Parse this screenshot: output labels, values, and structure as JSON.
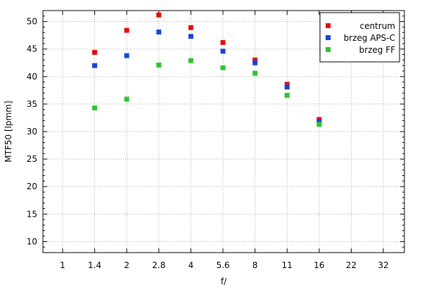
{
  "chart_data": {
    "type": "scatter",
    "title": "",
    "xlabel": "f/",
    "ylabel": "MTF50 [lpmm]",
    "x_ticks": [
      "1",
      "1.4",
      "2",
      "2.8",
      "4",
      "5.6",
      "8",
      "11",
      "16",
      "22",
      "32"
    ],
    "ylim": [
      8,
      52
    ],
    "y_ticks": [
      10,
      15,
      20,
      25,
      30,
      35,
      40,
      45,
      50
    ],
    "grid": true,
    "legend_position": "top-right",
    "series": [
      {
        "name": "centrum",
        "color": "#e01010",
        "points": [
          {
            "x": "1.4",
            "y": 44.4
          },
          {
            "x": "2",
            "y": 48.4
          },
          {
            "x": "2.8",
            "y": 51.2
          },
          {
            "x": "4",
            "y": 48.9
          },
          {
            "x": "5.6",
            "y": 46.2
          },
          {
            "x": "8",
            "y": 43.0
          },
          {
            "x": "11",
            "y": 38.6
          },
          {
            "x": "16",
            "y": 32.2
          }
        ]
      },
      {
        "name": "brzeg APS-C",
        "color": "#1a44d8",
        "points": [
          {
            "x": "1.4",
            "y": 42.0
          },
          {
            "x": "2",
            "y": 43.8
          },
          {
            "x": "2.8",
            "y": 48.1
          },
          {
            "x": "4",
            "y": 47.3
          },
          {
            "x": "5.6",
            "y": 44.6
          },
          {
            "x": "8",
            "y": 42.5
          },
          {
            "x": "11",
            "y": 38.1
          },
          {
            "x": "16",
            "y": 31.8
          }
        ]
      },
      {
        "name": "brzeg FF",
        "color": "#2ec42e",
        "points": [
          {
            "x": "1.4",
            "y": 34.3
          },
          {
            "x": "2",
            "y": 35.9
          },
          {
            "x": "2.8",
            "y": 42.1
          },
          {
            "x": "4",
            "y": 42.9
          },
          {
            "x": "5.6",
            "y": 41.6
          },
          {
            "x": "8",
            "y": 40.6
          },
          {
            "x": "11",
            "y": 36.6
          },
          {
            "x": "16",
            "y": 31.3
          }
        ]
      }
    ]
  }
}
